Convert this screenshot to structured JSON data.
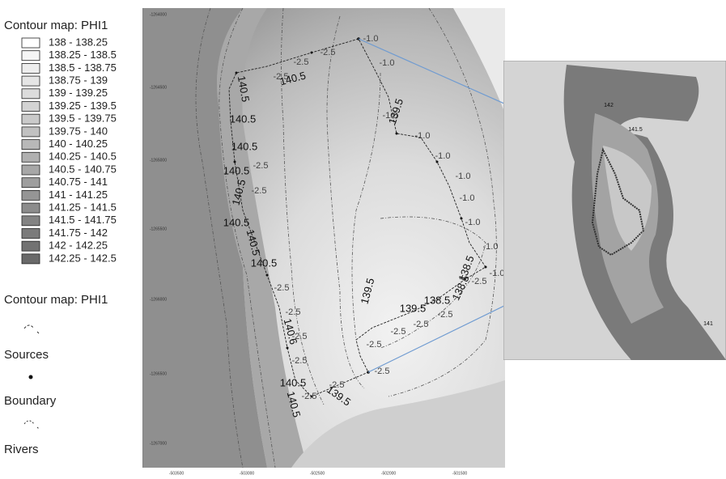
{
  "legend": {
    "contour_title": "Contour map: PHI1",
    "ranges": [
      "138 - 138.25",
      "138.25 - 138.5",
      "138.5 - 138.75",
      "138.75 - 139",
      "139 - 139.25",
      "139.25 - 139.5",
      "139.5 - 139.75",
      "139.75 - 140",
      "140 - 140.25",
      "140.25 - 140.5",
      "140.5 - 140.75",
      "140.75 - 141",
      "141 - 141.25",
      "141.25 - 141.5",
      "141.5 - 141.75",
      "141.75 - 142",
      "142 - 142.25",
      "142.25 - 142.5"
    ],
    "lines_title": "Contour map: PHI1",
    "sources_title": "Sources",
    "boundary_title": "Boundary",
    "rivers_title": "Rivers"
  },
  "main_map": {
    "y_axis_labels": [
      "-1264000",
      "-1264500",
      "-1265000",
      "-1265500",
      "-1266000",
      "-1266500",
      "-1267000"
    ],
    "x_axis_labels": [
      "-503500",
      "-503000",
      "-502500",
      "-502000",
      "-501500"
    ],
    "contour_labels": [
      "-1.0",
      "-1.0",
      "139.5",
      "-1.0",
      "-1.0",
      "-1.0",
      "-1.0",
      "-1.0",
      "-1.0",
      "-1.0",
      "-1.0",
      "-2.5",
      "-2.5",
      "-2.5",
      "140.5",
      "140.5",
      "140.5",
      "140.5",
      "140.5",
      "-2.5",
      "140.5",
      "-2.5",
      "140.5",
      "140.5",
      "140.5",
      "-2.5",
      "-2.5",
      "140.6",
      "-2.5",
      "-2.5",
      "140.5",
      "140.5",
      "-2.5",
      "139.5",
      "-2.5",
      "-2.5",
      "-2.5",
      "139.5",
      "139.5",
      "138.5",
      "138.5",
      "138.5",
      "-2.5",
      "-2.5",
      "-2.5",
      "-2.5"
    ]
  },
  "inset_map": {
    "contour_labels": [
      "142",
      "141.5",
      "141"
    ]
  }
}
